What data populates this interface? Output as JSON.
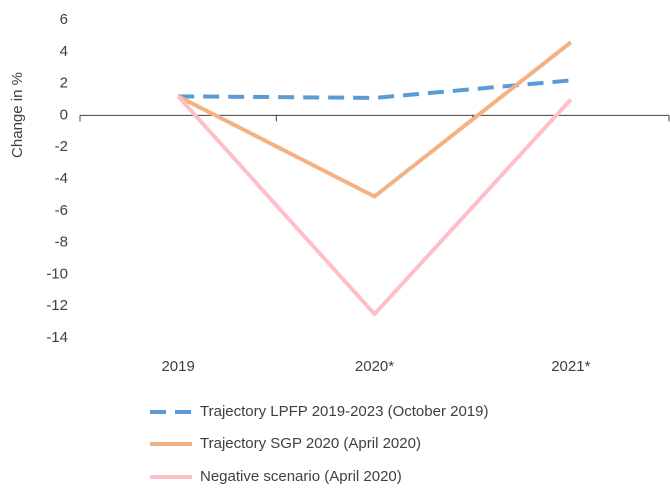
{
  "chart_data": {
    "type": "line",
    "y_label": "Change in %",
    "categories": [
      "2019",
      "2020*",
      "2021*"
    ],
    "series": [
      {
        "name": "Trajectory LPFP 2019-2023 (October 2019)",
        "color": "#5b9bd5",
        "dash": true,
        "values": [
          1.2,
          1.1,
          2.2
        ]
      },
      {
        "name": "Trajectory SGP 2020 (April 2020)",
        "color": "#f4b183",
        "dash": false,
        "values": [
          1.2,
          -5.1,
          4.6
        ]
      },
      {
        "name": "Negative scenario  (April 2020)",
        "color": "#ffbfc6",
        "dash": false,
        "values": [
          1.2,
          -12.5,
          1.0
        ]
      }
    ],
    "ylim": [
      -14,
      6
    ],
    "yticks": [
      -14,
      -12,
      -10,
      -8,
      -6,
      -4,
      -2,
      0,
      2,
      4,
      6
    ]
  }
}
